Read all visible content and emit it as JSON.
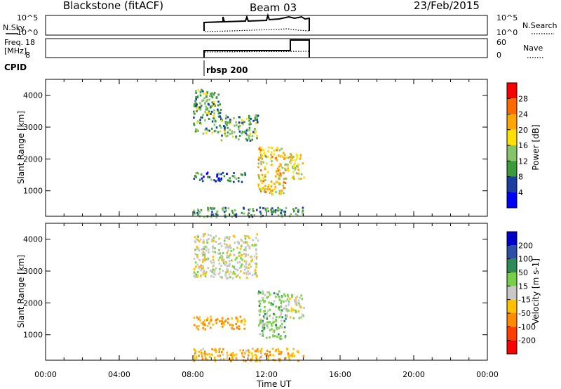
{
  "header": {
    "station": "Blackstone (fitACF)",
    "beam": "Beam 03",
    "date": "23/Feb/2015"
  },
  "nsky_panel": {
    "left_label": "N.Sky",
    "right_label": "N.Search",
    "left_ticks": [
      "10^5",
      "10^0"
    ],
    "right_ticks": [
      "10^5",
      "10^0"
    ]
  },
  "freq_panel": {
    "left_label_line1": "Freq.",
    "left_label_line2": "[MHz]",
    "right_label": "Nave",
    "left_ticks": [
      "18",
      "8"
    ],
    "right_ticks": [
      "60",
      "0"
    ]
  },
  "cpid": {
    "label": "CPID",
    "program": "rbsp 200"
  },
  "x_axis": {
    "label": "Time UT",
    "ticks": [
      "00:00",
      "04:00",
      "08:00",
      "12:00",
      "16:00",
      "20:00",
      "00:00"
    ]
  },
  "power_colorbar": {
    "label": "Power [dB]",
    "ticks": [
      "28",
      "24",
      "20",
      "16",
      "12",
      "8",
      "4"
    ],
    "colors": [
      "#ff0000",
      "#ff6a00",
      "#ffa600",
      "#ffe000",
      "#86c46a",
      "#3c9a3c",
      "#1a3fa0",
      "#0000ff"
    ]
  },
  "velocity_colorbar": {
    "label": "Velocity [m s-1]",
    "ticks": [
      "200",
      "100",
      "50",
      "15",
      "-15",
      "-50",
      "-100",
      "-200"
    ],
    "colors": [
      "#0000cc",
      "#2e4fa8",
      "#2e8b57",
      "#78d04a",
      "#c8c8c8",
      "#ffc000",
      "#ff8c00",
      "#ff4000",
      "#ff0000"
    ]
  },
  "chart_data": [
    {
      "type": "heatmap",
      "panel": "power",
      "ylabel": "Slant Range [km]",
      "yticks": [
        "1000",
        "2000",
        "3000",
        "4000"
      ],
      "ylim": [
        200,
        4500
      ],
      "xlim": [
        0,
        24
      ],
      "data_time_range": [
        8.0,
        14.0
      ],
      "echo_regions": [
        {
          "t": [
            8.0,
            9.5
          ],
          "range": [
            2800,
            4200
          ],
          "level_db": 10
        },
        {
          "t": [
            9.5,
            11.5
          ],
          "range": [
            2600,
            3400
          ],
          "level_db": 10
        },
        {
          "t": [
            11.5,
            13.0
          ],
          "range": [
            900,
            2400
          ],
          "level_db": 18
        },
        {
          "t": [
            13.0,
            14.0
          ],
          "range": [
            1400,
            2200
          ],
          "level_db": 16
        },
        {
          "t": [
            8.0,
            10.8
          ],
          "range": [
            1300,
            1600
          ],
          "level_db": 6
        },
        {
          "t": [
            8.0,
            14.0
          ],
          "range": [
            200,
            500
          ],
          "level_db": 8
        }
      ]
    },
    {
      "type": "heatmap",
      "panel": "velocity",
      "ylabel": "Slant Range [km]",
      "yticks": [
        "1000",
        "2000",
        "3000",
        "4000"
      ],
      "ylim": [
        200,
        4500
      ],
      "xlim": [
        0,
        24
      ],
      "data_time_range": [
        8.0,
        14.0
      ],
      "echo_regions": [
        {
          "t": [
            8.0,
            11.5
          ],
          "range": [
            2800,
            4200
          ],
          "velocity": 0
        },
        {
          "t": [
            11.5,
            13.0
          ],
          "range": [
            900,
            2400
          ],
          "velocity": 30
        },
        {
          "t": [
            13.0,
            14.0
          ],
          "range": [
            1500,
            2300
          ],
          "velocity": 0
        },
        {
          "t": [
            8.0,
            10.8
          ],
          "range": [
            1200,
            1600
          ],
          "velocity": -60
        },
        {
          "t": [
            8.0,
            14.0
          ],
          "range": [
            200,
            600
          ],
          "velocity": -40
        }
      ]
    }
  ]
}
